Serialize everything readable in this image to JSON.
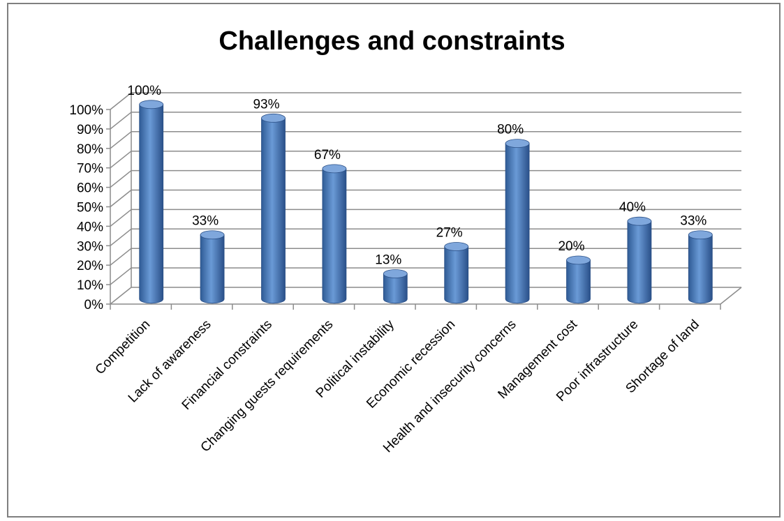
{
  "chart_data": {
    "type": "bar",
    "title": "Challenges and constraints",
    "categories": [
      "Competition",
      "Lack of awareness",
      "Financial constraints",
      "Changing guests requirements",
      "Political instability",
      "Economic recession",
      "Health and insecurity concerns",
      "Management cost",
      "Poor infrastructure",
      "Shortage of land"
    ],
    "values": [
      100,
      33,
      93,
      67,
      13,
      27,
      80,
      20,
      40,
      33
    ],
    "data_labels": [
      "100%",
      "33%",
      "93%",
      "67%",
      "13%",
      "27%",
      "80%",
      "20%",
      "40%",
      "33%"
    ],
    "y_ticks": [
      "0%",
      "10%",
      "20%",
      "30%",
      "40%",
      "50%",
      "60%",
      "70%",
      "80%",
      "90%",
      "100%"
    ],
    "ylim": [
      0,
      100
    ],
    "grid": true,
    "legend": "none",
    "bar_color": "#4f81bd",
    "bar_shape": "3d-cylinder"
  }
}
